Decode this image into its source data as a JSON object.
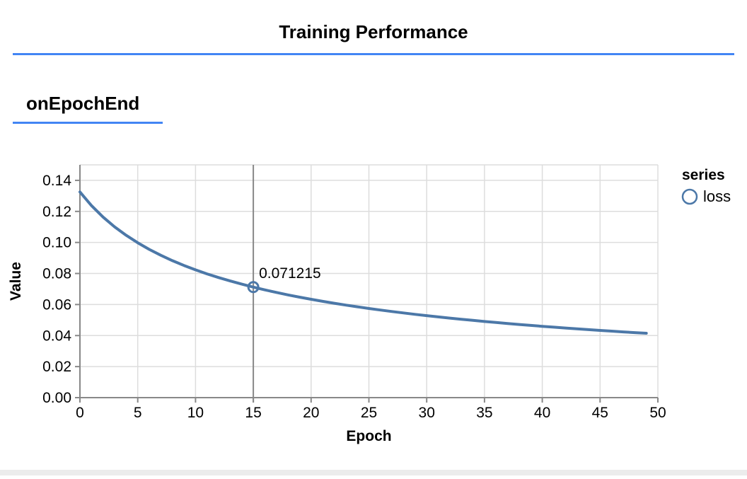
{
  "header": {
    "title": "Training Performance"
  },
  "surface": {
    "title": "onEpochEnd"
  },
  "colors": {
    "accent_blue": "#4285f4",
    "series_blue": "#4c78a8",
    "grid": "#dddddd",
    "axis": "#888888",
    "crosshair": "#888888",
    "text": "#000000",
    "bottom_bar": "#ececec"
  },
  "chart_data": {
    "type": "line",
    "title": "",
    "xlabel": "Epoch",
    "ylabel": "Value",
    "xlim": [
      0,
      50
    ],
    "ylim": [
      0,
      0.15
    ],
    "grid": true,
    "x_ticks": [
      0,
      5,
      10,
      15,
      20,
      25,
      30,
      35,
      40,
      45,
      50
    ],
    "x_tick_labels": [
      "0",
      "5",
      "10",
      "15",
      "20",
      "25",
      "30",
      "35",
      "40",
      "45",
      "50"
    ],
    "y_ticks": [
      0,
      0.02,
      0.04,
      0.06,
      0.08,
      0.1,
      0.12,
      0.14
    ],
    "y_tick_labels": [
      "0.00",
      "0.02",
      "0.04",
      "0.06",
      "0.08",
      "0.10",
      "0.12",
      "0.14"
    ],
    "legend": {
      "title": "series",
      "position": "right",
      "entries": [
        {
          "label": "loss",
          "marker": "ring",
          "color": "#4c78a8"
        }
      ]
    },
    "series": [
      {
        "name": "loss",
        "color": "#4c78a8",
        "x": [
          0,
          1,
          2,
          3,
          4,
          5,
          6,
          7,
          8,
          9,
          10,
          11,
          12,
          13,
          14,
          15,
          16,
          17,
          18,
          19,
          20,
          21,
          22,
          23,
          24,
          25,
          26,
          27,
          28,
          29,
          30,
          31,
          32,
          33,
          34,
          35,
          36,
          37,
          38,
          39,
          40,
          41,
          42,
          43,
          44,
          45,
          46,
          47,
          48,
          49
        ],
        "values": [
          0.13253,
          0.12376,
          0.11637,
          0.11005,
          0.10458,
          0.09978,
          0.09551,
          0.09171,
          0.08828,
          0.08518,
          0.08235,
          0.07975,
          0.07737,
          0.07516,
          0.07312,
          0.071215,
          0.06944,
          0.06778,
          0.06622,
          0.06475,
          0.06336,
          0.06205,
          0.06081,
          0.05964,
          0.05852,
          0.05746,
          0.05645,
          0.05548,
          0.05456,
          0.05368,
          0.05283,
          0.05202,
          0.05124,
          0.05049,
          0.04977,
          0.04908,
          0.0484,
          0.04776,
          0.04714,
          0.04654,
          0.04596,
          0.0454,
          0.04485,
          0.04432,
          0.04381,
          0.04332,
          0.04284,
          0.04237,
          0.04192,
          0.04147
        ]
      }
    ],
    "highlight": {
      "x": 15,
      "y": 0.071215,
      "label": "0.071215"
    }
  }
}
